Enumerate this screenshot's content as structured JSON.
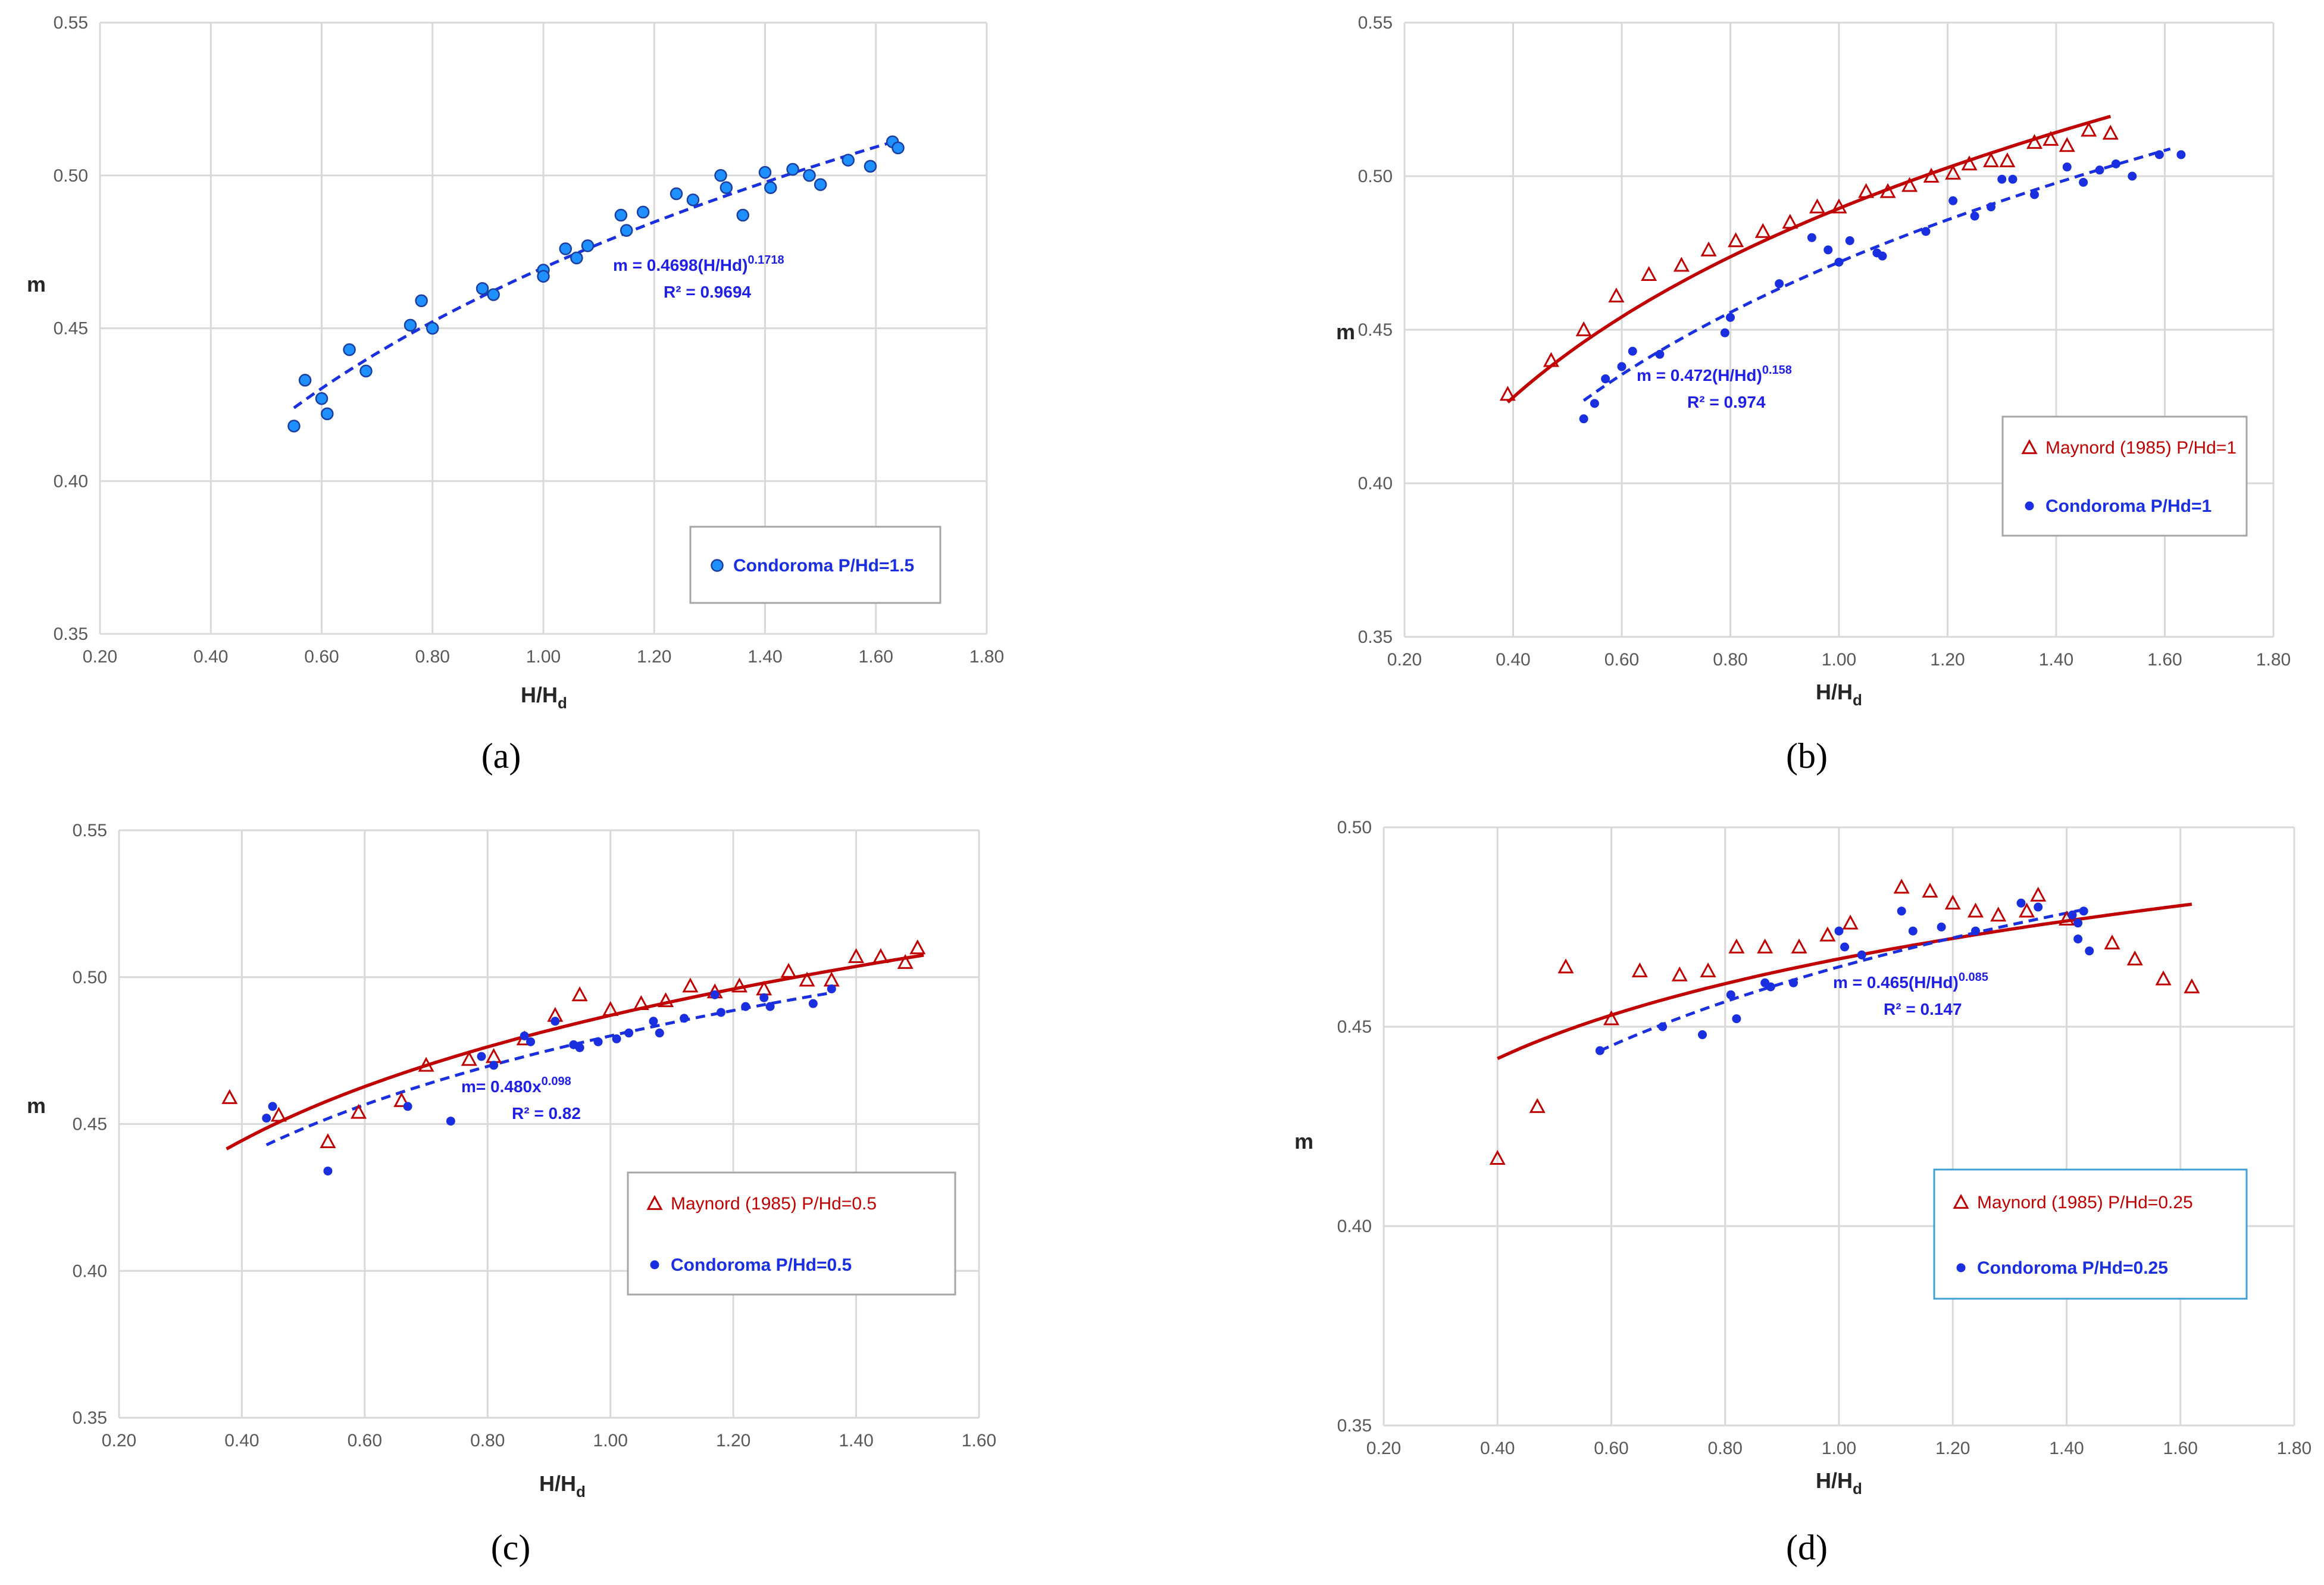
{
  "colors": {
    "blue_fill": "#1e90ff",
    "blue_dark": "#1a2fe0",
    "red": "#c00000",
    "grid": "#d9d9d9",
    "legend_border_default": "#a6a6a6",
    "legend_border_d": "#41a0d4"
  },
  "chart_data": [
    {
      "type": "scatter",
      "caption": "(a)",
      "xlabel": "H/H",
      "xlabel_sub": "d",
      "ylabel": "m",
      "xlim": [
        0.2,
        1.8
      ],
      "ylim": [
        0.35,
        0.55
      ],
      "x_ticks": [
        "0.20",
        "0.40",
        "0.60",
        "0.80",
        "1.00",
        "1.20",
        "1.40",
        "1.60",
        "1.80"
      ],
      "y_ticks": [
        "0.35",
        "0.40",
        "0.45",
        "0.50",
        "0.55"
      ],
      "legend": [
        "Condoroma P/Hd=1.5"
      ],
      "annotations": [
        {
          "base": "m = 0.4698(H/Hd)",
          "sup": "0.1718",
          "r2": "R² = 0.9694"
        }
      ],
      "series": [
        {
          "name": "Condoroma P/Hd=1.5",
          "marker": "circle_filled",
          "color": "#1e90ff",
          "x": [
            0.55,
            0.57,
            0.6,
            0.61,
            0.65,
            0.68,
            0.76,
            0.78,
            0.8,
            0.89,
            0.91,
            1.0,
            1.0,
            1.04,
            1.06,
            1.08,
            1.14,
            1.15,
            1.18,
            1.24,
            1.27,
            1.32,
            1.33,
            1.36,
            1.4,
            1.41,
            1.45,
            1.48,
            1.5,
            1.55,
            1.59,
            1.63,
            1.64
          ],
          "y": [
            0.418,
            0.433,
            0.427,
            0.422,
            0.443,
            0.436,
            0.451,
            0.459,
            0.45,
            0.463,
            0.461,
            0.469,
            0.467,
            0.476,
            0.473,
            0.477,
            0.487,
            0.482,
            0.488,
            0.494,
            0.492,
            0.5,
            0.496,
            0.487,
            0.501,
            0.496,
            0.502,
            0.5,
            0.497,
            0.505,
            0.503,
            0.511,
            0.509
          ]
        }
      ],
      "trendlines": [
        {
          "name": "Condoroma fit",
          "a": 0.4698,
          "b": 0.1718,
          "x_range": [
            0.55,
            1.64
          ],
          "style": "dashed",
          "color": "#1a2fe0"
        }
      ]
    },
    {
      "type": "scatter",
      "caption": "(b)",
      "xlabel": "H/H",
      "xlabel_sub": "d",
      "ylabel": "m",
      "xlim": [
        0.2,
        1.8
      ],
      "ylim": [
        0.35,
        0.55
      ],
      "x_ticks": [
        "0.20",
        "0.40",
        "0.60",
        "0.80",
        "1.00",
        "1.20",
        "1.40",
        "1.60",
        "1.80"
      ],
      "y_ticks": [
        "0.35",
        "0.40",
        "0.45",
        "0.50",
        "0.55"
      ],
      "legend": [
        "Maynord (1985) P/Hd=1",
        "Condoroma P/Hd=1"
      ],
      "annotations": [
        {
          "base": "m = 0.472(H/Hd)",
          "sup": "0.158",
          "r2": "R² = 0.974"
        }
      ],
      "series": [
        {
          "name": "Maynord (1985) P/Hd=1",
          "marker": "triangle_open",
          "color": "#c00000",
          "x": [
            0.39,
            0.47,
            0.53,
            0.59,
            0.65,
            0.71,
            0.76,
            0.81,
            0.86,
            0.91,
            0.96,
            1.0,
            1.05,
            1.09,
            1.13,
            1.17,
            1.21,
            1.24,
            1.28,
            1.31,
            1.36,
            1.39,
            1.42,
            1.46,
            1.5
          ],
          "y": [
            0.429,
            0.44,
            0.45,
            0.461,
            0.468,
            0.471,
            0.476,
            0.479,
            0.482,
            0.485,
            0.49,
            0.49,
            0.495,
            0.495,
            0.497,
            0.5,
            0.501,
            0.504,
            0.505,
            0.505,
            0.511,
            0.512,
            0.51,
            0.515,
            0.514
          ]
        },
        {
          "name": "Condoroma P/Hd=1",
          "marker": "circle_small",
          "color": "#1a2fe0",
          "x": [
            0.53,
            0.55,
            0.57,
            0.6,
            0.62,
            0.67,
            0.79,
            0.8,
            0.89,
            0.95,
            0.98,
            1.0,
            1.02,
            1.07,
            1.08,
            1.16,
            1.21,
            1.25,
            1.28,
            1.3,
            1.32,
            1.36,
            1.42,
            1.45,
            1.48,
            1.51,
            1.54,
            1.59,
            1.63
          ],
          "y": [
            0.421,
            0.426,
            0.434,
            0.438,
            0.443,
            0.442,
            0.449,
            0.454,
            0.465,
            0.48,
            0.476,
            0.472,
            0.479,
            0.475,
            0.474,
            0.482,
            0.492,
            0.487,
            0.49,
            0.499,
            0.499,
            0.494,
            0.503,
            0.498,
            0.502,
            0.504,
            0.5,
            0.507,
            0.507
          ]
        }
      ],
      "trendlines": [
        {
          "name": "Maynord fit",
          "a": 0.4895,
          "b": 0.1466,
          "x_range": [
            0.39,
            1.5
          ],
          "style": "solid",
          "color": "#c00000"
        },
        {
          "name": "Condoroma fit",
          "a": 0.472,
          "b": 0.158,
          "x_range": [
            0.53,
            1.61
          ],
          "style": "dashed",
          "color": "#1a2fe0"
        }
      ]
    },
    {
      "type": "scatter",
      "caption": "(c)",
      "xlabel": "H/H",
      "xlabel_sub": "d",
      "ylabel": "m",
      "xlim": [
        0.2,
        1.6
      ],
      "ylim": [
        0.35,
        0.55
      ],
      "x_ticks": [
        "0.20",
        "0.40",
        "0.60",
        "0.80",
        "1.00",
        "1.20",
        "1.40",
        "1.60"
      ],
      "y_ticks": [
        "0.35",
        "0.40",
        "0.45",
        "0.50",
        "0.55"
      ],
      "legend": [
        "Maynord (1985) P/Hd=0.5",
        "Condoroma P/Hd=0.5"
      ],
      "annotations": [
        {
          "base": "m= 0.480x",
          "sup": "0.098",
          "r2": "R² = 0.82"
        }
      ],
      "series": [
        {
          "name": "Maynord (1985) P/Hd=0.5",
          "marker": "triangle_open",
          "color": "#c00000",
          "x": [
            0.38,
            0.46,
            0.54,
            0.59,
            0.66,
            0.7,
            0.77,
            0.81,
            0.86,
            0.91,
            0.95,
            1.0,
            1.05,
            1.09,
            1.13,
            1.17,
            1.21,
            1.25,
            1.29,
            1.32,
            1.36,
            1.4,
            1.44,
            1.48,
            1.5
          ],
          "y": [
            0.459,
            0.453,
            0.444,
            0.454,
            0.458,
            0.47,
            0.472,
            0.473,
            0.479,
            0.487,
            0.494,
            0.489,
            0.491,
            0.492,
            0.497,
            0.495,
            0.497,
            0.496,
            0.502,
            0.499,
            0.499,
            0.507,
            0.507,
            0.505,
            0.51
          ]
        },
        {
          "name": "Condoroma P/Hd=0.5",
          "marker": "circle_small",
          "color": "#1a2fe0",
          "x": [
            0.44,
            0.45,
            0.54,
            0.67,
            0.74,
            0.79,
            0.81,
            0.86,
            0.87,
            0.91,
            0.94,
            0.95,
            0.98,
            1.01,
            1.03,
            1.07,
            1.08,
            1.12,
            1.17,
            1.18,
            1.22,
            1.25,
            1.26,
            1.33,
            1.36
          ],
          "y": [
            0.452,
            0.456,
            0.434,
            0.456,
            0.451,
            0.473,
            0.47,
            0.48,
            0.478,
            0.485,
            0.477,
            0.476,
            0.478,
            0.479,
            0.481,
            0.485,
            0.481,
            0.486,
            0.494,
            0.488,
            0.49,
            0.493,
            0.49,
            0.491,
            0.496
          ]
        }
      ],
      "trendlines": [
        {
          "name": "Maynord fit",
          "a": 0.487,
          "b": 0.1,
          "x_range": [
            0.375,
            1.51
          ],
          "style": "solid",
          "color": "#c00000"
        },
        {
          "name": "Condoroma fit",
          "a": 0.48,
          "b": 0.098,
          "x_range": [
            0.44,
            1.36
          ],
          "style": "dashed",
          "color": "#1a2fe0"
        }
      ]
    },
    {
      "type": "scatter",
      "caption": "(d)",
      "xlabel": "H/H",
      "xlabel_sub": "d",
      "ylabel": "m",
      "xlim": [
        0.2,
        1.8
      ],
      "ylim": [
        0.35,
        0.5
      ],
      "x_ticks": [
        "0.20",
        "0.40",
        "0.60",
        "0.80",
        "1.00",
        "1.20",
        "1.40",
        "1.60",
        "1.80"
      ],
      "y_ticks": [
        "0.35",
        "0.40",
        "0.45",
        "0.50"
      ],
      "legend": [
        "Maynord (1985) P/Hd=0.25",
        "Condoroma P/Hd=0.25"
      ],
      "annotations": [
        {
          "base": "m = 0.465(H/Hd)",
          "sup": "0.085",
          "r2": "R² = 0.147"
        }
      ],
      "series": [
        {
          "name": "Maynord (1985) P/Hd=0.25",
          "marker": "triangle_open",
          "color": "#c00000",
          "x": [
            0.4,
            0.47,
            0.52,
            0.6,
            0.65,
            0.72,
            0.77,
            0.82,
            0.87,
            0.93,
            0.98,
            1.02,
            1.11,
            1.16,
            1.2,
            1.24,
            1.28,
            1.33,
            1.35,
            1.4,
            1.48,
            1.52,
            1.57,
            1.62
          ],
          "y": [
            0.417,
            0.43,
            0.465,
            0.452,
            0.464,
            0.463,
            0.464,
            0.47,
            0.47,
            0.47,
            0.473,
            0.476,
            0.485,
            0.484,
            0.481,
            0.479,
            0.478,
            0.479,
            0.483,
            0.477,
            0.471,
            0.467,
            0.462,
            0.46
          ]
        },
        {
          "name": "Condoroma P/Hd=0.25",
          "marker": "circle_small",
          "color": "#1a2fe0",
          "x": [
            0.58,
            0.69,
            0.76,
            0.81,
            0.82,
            0.87,
            0.88,
            0.92,
            1.0,
            1.01,
            1.04,
            1.11,
            1.13,
            1.18,
            1.24,
            1.32,
            1.35,
            1.41,
            1.42,
            1.42,
            1.43,
            1.44
          ],
          "y": [
            0.444,
            0.45,
            0.448,
            0.458,
            0.452,
            0.461,
            0.46,
            0.461,
            0.474,
            0.47,
            0.468,
            0.479,
            0.474,
            0.475,
            0.474,
            0.481,
            0.48,
            0.478,
            0.472,
            0.476,
            0.479,
            0.469
          ]
        }
      ],
      "trendlines": [
        {
          "name": "Maynord fit",
          "a": 0.467,
          "b": 0.06,
          "x_range": [
            0.4,
            1.62
          ],
          "style": "solid",
          "color": "#c00000"
        },
        {
          "name": "Condoroma fit",
          "a": 0.465,
          "b": 0.085,
          "x_range": [
            0.58,
            1.43
          ],
          "style": "dashed",
          "color": "#1a2fe0"
        }
      ]
    }
  ]
}
